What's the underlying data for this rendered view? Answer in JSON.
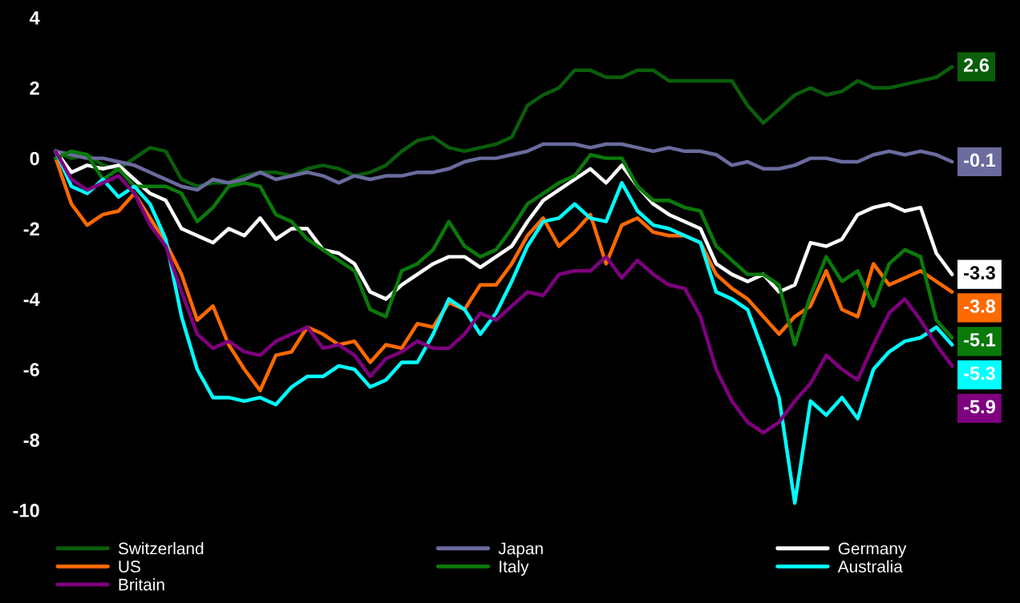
{
  "chart_data": {
    "type": "line",
    "categories": [
      null,
      null,
      null,
      null,
      null,
      null,
      null,
      null,
      null,
      null,
      null,
      null,
      null,
      null,
      null,
      null,
      null,
      null,
      null,
      null,
      null,
      null,
      null,
      null,
      null,
      null,
      null,
      null,
      null,
      null,
      null,
      null,
      null,
      null,
      null,
      null,
      null,
      null,
      null,
      null,
      null,
      null,
      null,
      null,
      null,
      null,
      null,
      null,
      null,
      null,
      null,
      null,
      null,
      null,
      null,
      null,
      null,
      null
    ],
    "ylim": [
      -10,
      4
    ],
    "yticks": [
      -10,
      -8,
      -6,
      -4,
      -2,
      0,
      2,
      4
    ],
    "grid": false,
    "legend": "bottom",
    "tick_labels": "y",
    "marker": "none",
    "line_style": "solid",
    "series": [
      {
        "name": "Switzerland",
        "color": "#0a5e0a",
        "values": [
          0.2,
          0,
          0.1,
          -0.2,
          -0.3,
          0,
          0.3,
          0.2,
          -0.6,
          -0.8,
          -0.7,
          -0.7,
          -0.5,
          -0.4,
          -0.4,
          -0.5,
          -0.3,
          -0.2,
          -0.3,
          -0.5,
          -0.4,
          -0.2,
          0.2,
          0.5,
          0.6,
          0.3,
          0.2,
          0.3,
          0.4,
          0.6,
          1.5,
          1.8,
          2.0,
          2.5,
          2.5,
          2.3,
          2.3,
          2.5,
          2.5,
          2.2,
          2.2,
          2.2,
          2.2,
          2.2,
          1.5,
          1.0,
          1.4,
          1.8,
          2.0,
          1.8,
          1.9,
          2.2,
          2.0,
          2.0,
          2.1,
          2.2,
          2.3,
          2.6
        ],
        "value_labels": [
          null,
          null,
          null,
          null,
          null,
          null,
          null,
          null,
          null,
          null,
          null,
          null,
          null,
          null,
          null,
          null,
          null,
          null,
          null,
          null,
          null,
          null,
          null,
          null,
          null,
          null,
          null,
          null,
          null,
          null,
          null,
          null,
          null,
          null,
          null,
          null,
          null,
          null,
          null,
          null,
          null,
          null,
          null,
          null,
          null,
          null,
          null,
          null,
          null,
          null,
          null,
          null,
          null,
          null,
          null,
          null,
          null,
          "2.6"
        ]
      },
      {
        "name": "Japan",
        "color": "#6b6b9e",
        "values": [
          0.2,
          0.1,
          0,
          0,
          -0.1,
          -0.2,
          -0.4,
          -0.6,
          -0.8,
          -0.9,
          -0.6,
          -0.7,
          -0.6,
          -0.4,
          -0.6,
          -0.5,
          -0.4,
          -0.5,
          -0.7,
          -0.5,
          -0.6,
          -0.5,
          -0.5,
          -0.4,
          -0.4,
          -0.3,
          -0.1,
          0,
          0,
          0.1,
          0.2,
          0.4,
          0.4,
          0.4,
          0.3,
          0.4,
          0.4,
          0.3,
          0.2,
          0.3,
          0.2,
          0.2,
          0.1,
          -0.2,
          -0.1,
          -0.3,
          -0.3,
          -0.2,
          0,
          0,
          -0.1,
          -0.1,
          0.1,
          0.2,
          0.1,
          0.2,
          0.1,
          -0.1
        ],
        "value_labels": [
          null,
          null,
          null,
          null,
          null,
          null,
          null,
          null,
          null,
          null,
          null,
          null,
          null,
          null,
          null,
          null,
          null,
          null,
          null,
          null,
          null,
          null,
          null,
          null,
          null,
          null,
          null,
          null,
          null,
          null,
          null,
          null,
          null,
          null,
          null,
          null,
          null,
          null,
          null,
          null,
          null,
          null,
          null,
          null,
          null,
          null,
          null,
          null,
          null,
          null,
          null,
          null,
          null,
          null,
          null,
          null,
          null,
          "-0.1"
        ]
      },
      {
        "name": "Germany",
        "color": "#ffffff",
        "values": [
          0.2,
          -0.4,
          -0.2,
          -0.3,
          -0.2,
          -0.6,
          -1.0,
          -1.2,
          -2.0,
          -2.2,
          -2.4,
          -2.0,
          -2.2,
          -1.7,
          -2.3,
          -2.0,
          -2.0,
          -2.6,
          -2.7,
          -3.0,
          -3.8,
          -4.0,
          -3.6,
          -3.3,
          -3.0,
          -2.8,
          -2.8,
          -3.1,
          -2.8,
          -2.5,
          -1.8,
          -1.2,
          -0.9,
          -0.6,
          -0.3,
          -0.7,
          -0.2,
          -0.8,
          -1.3,
          -1.6,
          -1.8,
          -2.0,
          -3.0,
          -3.3,
          -3.5,
          -3.3,
          -3.8,
          -3.6,
          -2.4,
          -2.5,
          -2.3,
          -1.6,
          -1.4,
          -1.3,
          -1.5,
          -1.4,
          -2.7,
          -3.3
        ],
        "value_labels": [
          null,
          null,
          null,
          null,
          null,
          null,
          null,
          null,
          null,
          null,
          null,
          null,
          null,
          null,
          null,
          null,
          null,
          null,
          null,
          null,
          null,
          null,
          null,
          null,
          null,
          null,
          null,
          null,
          null,
          null,
          null,
          null,
          null,
          null,
          null,
          null,
          null,
          null,
          null,
          null,
          null,
          null,
          null,
          null,
          null,
          null,
          null,
          null,
          null,
          null,
          null,
          null,
          null,
          null,
          null,
          null,
          null,
          "-3.3"
        ]
      },
      {
        "name": "US",
        "color": "#ff6a00",
        "values": [
          0,
          -1.3,
          -1.9,
          -1.6,
          -1.5,
          -1.0,
          -1.7,
          -2.4,
          -3.3,
          -4.6,
          -4.2,
          -5.3,
          -6.0,
          -6.6,
          -5.6,
          -5.5,
          -4.8,
          -5.0,
          -5.3,
          -5.2,
          -5.8,
          -5.3,
          -5.4,
          -4.7,
          -4.8,
          -4.1,
          -4.3,
          -3.6,
          -3.6,
          -3.0,
          -2.2,
          -1.7,
          -2.5,
          -2.1,
          -1.6,
          -3.0,
          -1.9,
          -1.7,
          -2.1,
          -2.2,
          -2.2,
          -2.4,
          -3.3,
          -3.7,
          -4.0,
          -4.5,
          -5.0,
          -4.5,
          -4.2,
          -3.2,
          -4.3,
          -4.5,
          -3.0,
          -3.6,
          -3.4,
          -3.2,
          -3.5,
          -3.8
        ],
        "value_labels": [
          null,
          null,
          null,
          null,
          null,
          null,
          null,
          null,
          null,
          null,
          null,
          null,
          null,
          null,
          null,
          null,
          null,
          null,
          null,
          null,
          null,
          null,
          null,
          null,
          null,
          null,
          null,
          null,
          null,
          null,
          null,
          null,
          null,
          null,
          null,
          null,
          null,
          null,
          null,
          null,
          null,
          null,
          null,
          null,
          null,
          null,
          null,
          null,
          null,
          null,
          null,
          null,
          null,
          null,
          null,
          null,
          null,
          "-3.8"
        ]
      },
      {
        "name": "Italy",
        "color": "#0a7a0a",
        "values": [
          0,
          0.2,
          0.1,
          -0.6,
          -0.3,
          -0.8,
          -0.8,
          -0.8,
          -1.0,
          -1.8,
          -1.4,
          -0.8,
          -0.7,
          -0.8,
          -1.6,
          -1.8,
          -2.3,
          -2.6,
          -2.9,
          -3.2,
          -4.3,
          -4.5,
          -3.2,
          -3.0,
          -2.6,
          -1.8,
          -2.5,
          -2.8,
          -2.6,
          -2.0,
          -1.3,
          -1.0,
          -0.7,
          -0.5,
          0.1,
          0,
          0,
          -0.8,
          -1.2,
          -1.2,
          -1.4,
          -1.5,
          -2.5,
          -2.9,
          -3.3,
          -3.3,
          -3.6,
          -5.3,
          -3.9,
          -2.8,
          -3.5,
          -3.2,
          -4.2,
          -3.0,
          -2.6,
          -2.8,
          -4.6,
          -5.1
        ],
        "value_labels": [
          null,
          null,
          null,
          null,
          null,
          null,
          null,
          null,
          null,
          null,
          null,
          null,
          null,
          null,
          null,
          null,
          null,
          null,
          null,
          null,
          null,
          null,
          null,
          null,
          null,
          null,
          null,
          null,
          null,
          null,
          null,
          null,
          null,
          null,
          null,
          null,
          null,
          null,
          null,
          null,
          null,
          null,
          null,
          null,
          null,
          null,
          null,
          null,
          null,
          null,
          null,
          null,
          null,
          null,
          null,
          null,
          null,
          "-5.1"
        ]
      },
      {
        "name": "Australia",
        "color": "#00ffff",
        "values": [
          0.2,
          -0.8,
          -1.0,
          -0.6,
          -1.1,
          -0.8,
          -1.3,
          -2.3,
          -4.5,
          -6.0,
          -6.8,
          -6.8,
          -6.9,
          -6.8,
          -7.0,
          -6.5,
          -6.2,
          -6.2,
          -5.9,
          -6.0,
          -6.5,
          -6.3,
          -5.8,
          -5.8,
          -5.0,
          -4.0,
          -4.3,
          -5.0,
          -4.4,
          -3.5,
          -2.5,
          -1.8,
          -1.7,
          -1.3,
          -1.7,
          -1.8,
          -0.7,
          -1.5,
          -1.9,
          -2.0,
          -2.2,
          -2.4,
          -3.8,
          -4.0,
          -4.3,
          -5.5,
          -6.8,
          -9.8,
          -6.9,
          -7.3,
          -6.8,
          -7.4,
          -6.0,
          -5.5,
          -5.2,
          -5.1,
          -4.8,
          -5.3
        ],
        "value_labels": [
          null,
          null,
          null,
          null,
          null,
          null,
          null,
          null,
          null,
          null,
          null,
          null,
          null,
          null,
          null,
          null,
          null,
          null,
          null,
          null,
          null,
          null,
          null,
          null,
          null,
          null,
          null,
          null,
          null,
          null,
          null,
          null,
          null,
          null,
          null,
          null,
          null,
          null,
          null,
          null,
          null,
          null,
          null,
          null,
          null,
          null,
          null,
          null,
          null,
          null,
          null,
          null,
          null,
          null,
          null,
          null,
          null,
          "-5.3"
        ]
      },
      {
        "name": "Britain",
        "color": "#7f007f",
        "values": [
          0.2,
          -0.6,
          -0.9,
          -0.7,
          -0.5,
          -1.0,
          -1.9,
          -2.5,
          -3.8,
          -5.0,
          -5.4,
          -5.2,
          -5.5,
          -5.6,
          -5.2,
          -5.0,
          -4.8,
          -5.4,
          -5.3,
          -5.6,
          -6.2,
          -5.7,
          -5.5,
          -5.2,
          -5.4,
          -5.4,
          -5.0,
          -4.4,
          -4.6,
          -4.2,
          -3.8,
          -3.9,
          -3.3,
          -3.2,
          -3.2,
          -2.8,
          -3.4,
          -2.9,
          -3.3,
          -3.6,
          -3.7,
          -4.5,
          -6.0,
          -6.9,
          -7.5,
          -7.8,
          -7.5,
          -6.9,
          -6.4,
          -5.6,
          -6.0,
          -6.3,
          -5.3,
          -4.4,
          -4.0,
          -4.6,
          -5.3,
          -5.9
        ],
        "value_labels": [
          null,
          null,
          null,
          null,
          null,
          null,
          null,
          null,
          null,
          null,
          null,
          null,
          null,
          null,
          null,
          null,
          null,
          null,
          null,
          null,
          null,
          null,
          null,
          null,
          null,
          null,
          null,
          null,
          null,
          null,
          null,
          null,
          null,
          null,
          null,
          null,
          null,
          null,
          null,
          null,
          null,
          null,
          null,
          null,
          null,
          null,
          null,
          null,
          null,
          null,
          null,
          null,
          null,
          null,
          null,
          null,
          null,
          "-5.9"
        ]
      }
    ]
  }
}
